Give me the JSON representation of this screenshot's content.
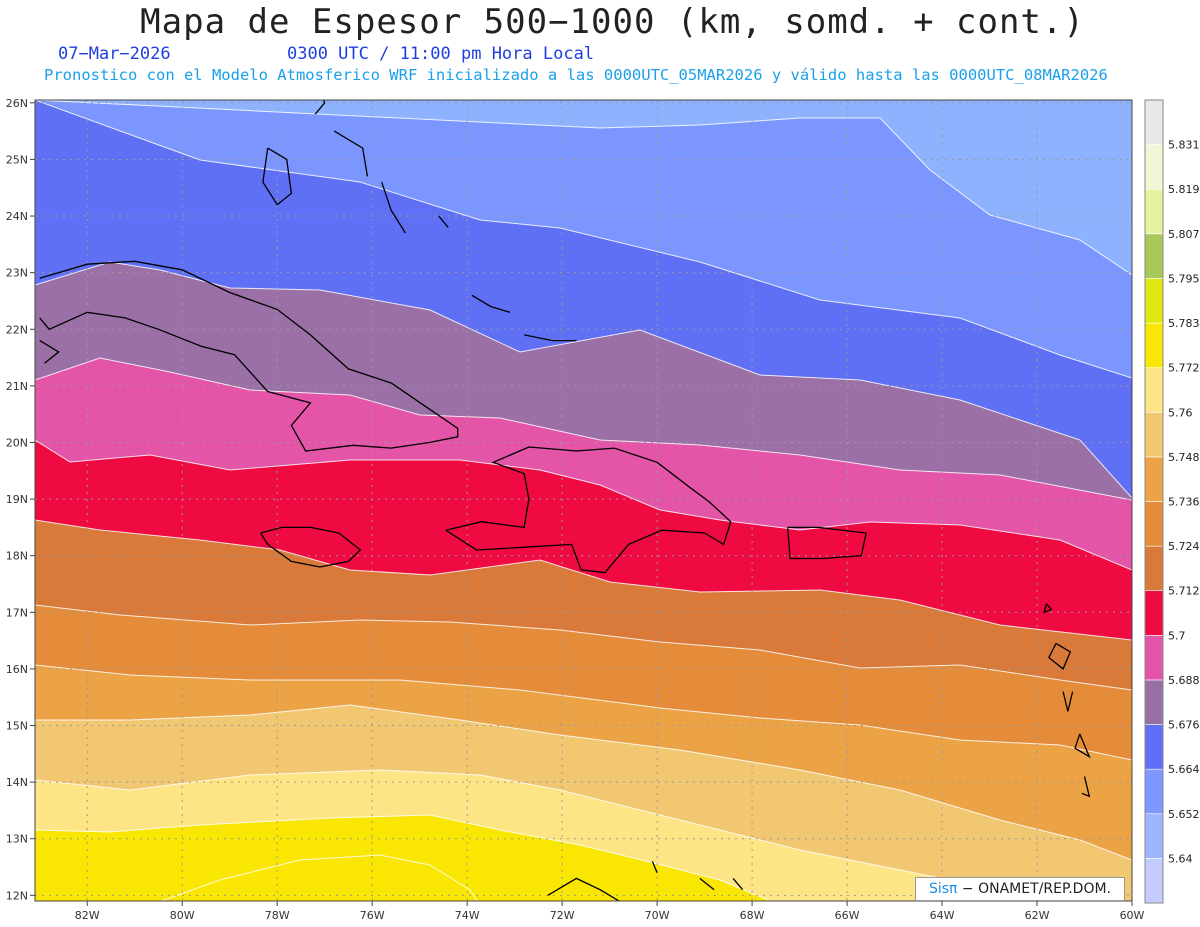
{
  "header": {
    "title": "Mapa de Espesor 500−1000 (km, somd. + cont.)",
    "date": "07−Mar−2026",
    "time": "0300 UTC / 11:00 pm Hora Local",
    "model_line": "Pronostico con el Modelo Atmosferico WRF inicializado a las 0000UTC_05MAR2026 y válido hasta las  0000UTC_08MAR2026"
  },
  "map": {
    "lon_range": [
      -83.1,
      -60
    ],
    "lat_range": [
      11.9,
      26.05
    ],
    "lon_ticks": [
      "82W",
      "80W",
      "78W",
      "76W",
      "74W",
      "72W",
      "70W",
      "68W",
      "66W",
      "64W",
      "62W",
      "60W"
    ],
    "lat_ticks": [
      "12N",
      "13N",
      "14N",
      "15N",
      "16N",
      "17N",
      "18N",
      "19N",
      "20N",
      "21N",
      "22N",
      "23N",
      "24N",
      "25N",
      "26N"
    ],
    "thickness_bands_km": [
      5.64,
      5.652,
      5.664,
      5.676,
      5.688,
      5.7,
      5.712,
      5.724,
      5.736,
      5.748,
      5.76,
      5.772,
      5.783
    ],
    "band_colors": [
      "#8fb2ff",
      "#7b96ff",
      "#6070f4",
      "#9a70a6",
      "#e455a8",
      "#ef0a41",
      "#d97a3a",
      "#e58c3b",
      "#eba346",
      "#f2c772",
      "#fde484",
      "#f9e602"
    ]
  },
  "colorbar": {
    "labels": [
      "5.64",
      "5.652",
      "5.664",
      "5.676",
      "5.688",
      "5.7",
      "5.712",
      "5.724",
      "5.736",
      "5.748",
      "5.76",
      "5.772",
      "5.783",
      "5.795",
      "5.807",
      "5.819",
      "5.831"
    ],
    "colors": [
      "#c3cbff",
      "#9fb4ff",
      "#7d98ff",
      "#5f6ef6",
      "#9870a6",
      "#e455a8",
      "#ef0a41",
      "#d97a3a",
      "#e58c3b",
      "#eba346",
      "#f2c772",
      "#fde484",
      "#f9e602",
      "#dfe810",
      "#a8c85a",
      "#e4f3a0",
      "#f0f6d6",
      "#e8e8e8"
    ]
  },
  "credit": {
    "brand": "Sisπ",
    "org": " − ONAMET/REP.DOM."
  }
}
